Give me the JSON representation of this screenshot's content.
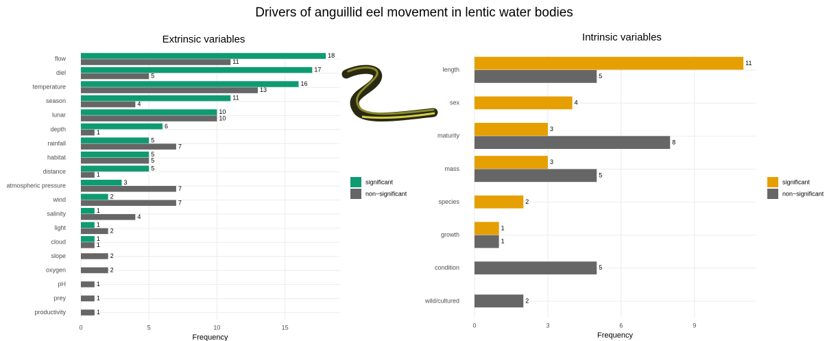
{
  "title": "Drivers of anguillid eel movement in lentic water bodies",
  "chart_data": [
    {
      "type": "bar",
      "horizontal": true,
      "title": "Extrinsic variables",
      "x_label": "Frequency",
      "categories": [
        "flow",
        "diel",
        "temperature",
        "season",
        "lunar",
        "depth",
        "rainfall",
        "habitat",
        "distance",
        "atmospheric pressure",
        "wind",
        "salinity",
        "light",
        "cloud",
        "slope",
        "oxygen",
        "pH",
        "prey",
        "productivity"
      ],
      "series": [
        {
          "name": "significant",
          "color": "#0f9b72",
          "values": [
            18,
            17,
            16,
            11,
            10,
            6,
            5,
            5,
            5,
            3,
            2,
            1,
            1,
            1,
            null,
            null,
            null,
            null,
            null
          ]
        },
        {
          "name": "non−significant",
          "color": "#666666",
          "values": [
            11,
            5,
            13,
            4,
            10,
            1,
            7,
            5,
            1,
            7,
            7,
            4,
            2,
            1,
            2,
            2,
            1,
            1,
            1
          ]
        }
      ],
      "xlim": [
        0,
        19
      ],
      "xticks": [
        0,
        5,
        10,
        15
      ],
      "grid": true,
      "legend": "right"
    },
    {
      "type": "bar",
      "horizontal": true,
      "title": "Intrinsic variables",
      "x_label": "Frequency",
      "categories": [
        "length",
        "sex",
        "maturity",
        "mass",
        "species",
        "growth",
        "condition",
        "wild/cultured"
      ],
      "series": [
        {
          "name": "significant",
          "color": "#e69f00",
          "values": [
            11,
            4,
            3,
            3,
            2,
            1,
            null,
            null
          ]
        },
        {
          "name": "non−significant",
          "color": "#666666",
          "values": [
            5,
            null,
            8,
            5,
            null,
            1,
            5,
            2
          ]
        }
      ],
      "xlim": [
        0,
        11.5
      ],
      "xticks": [
        0,
        3,
        6,
        9
      ],
      "grid": true,
      "legend": "right"
    }
  ]
}
